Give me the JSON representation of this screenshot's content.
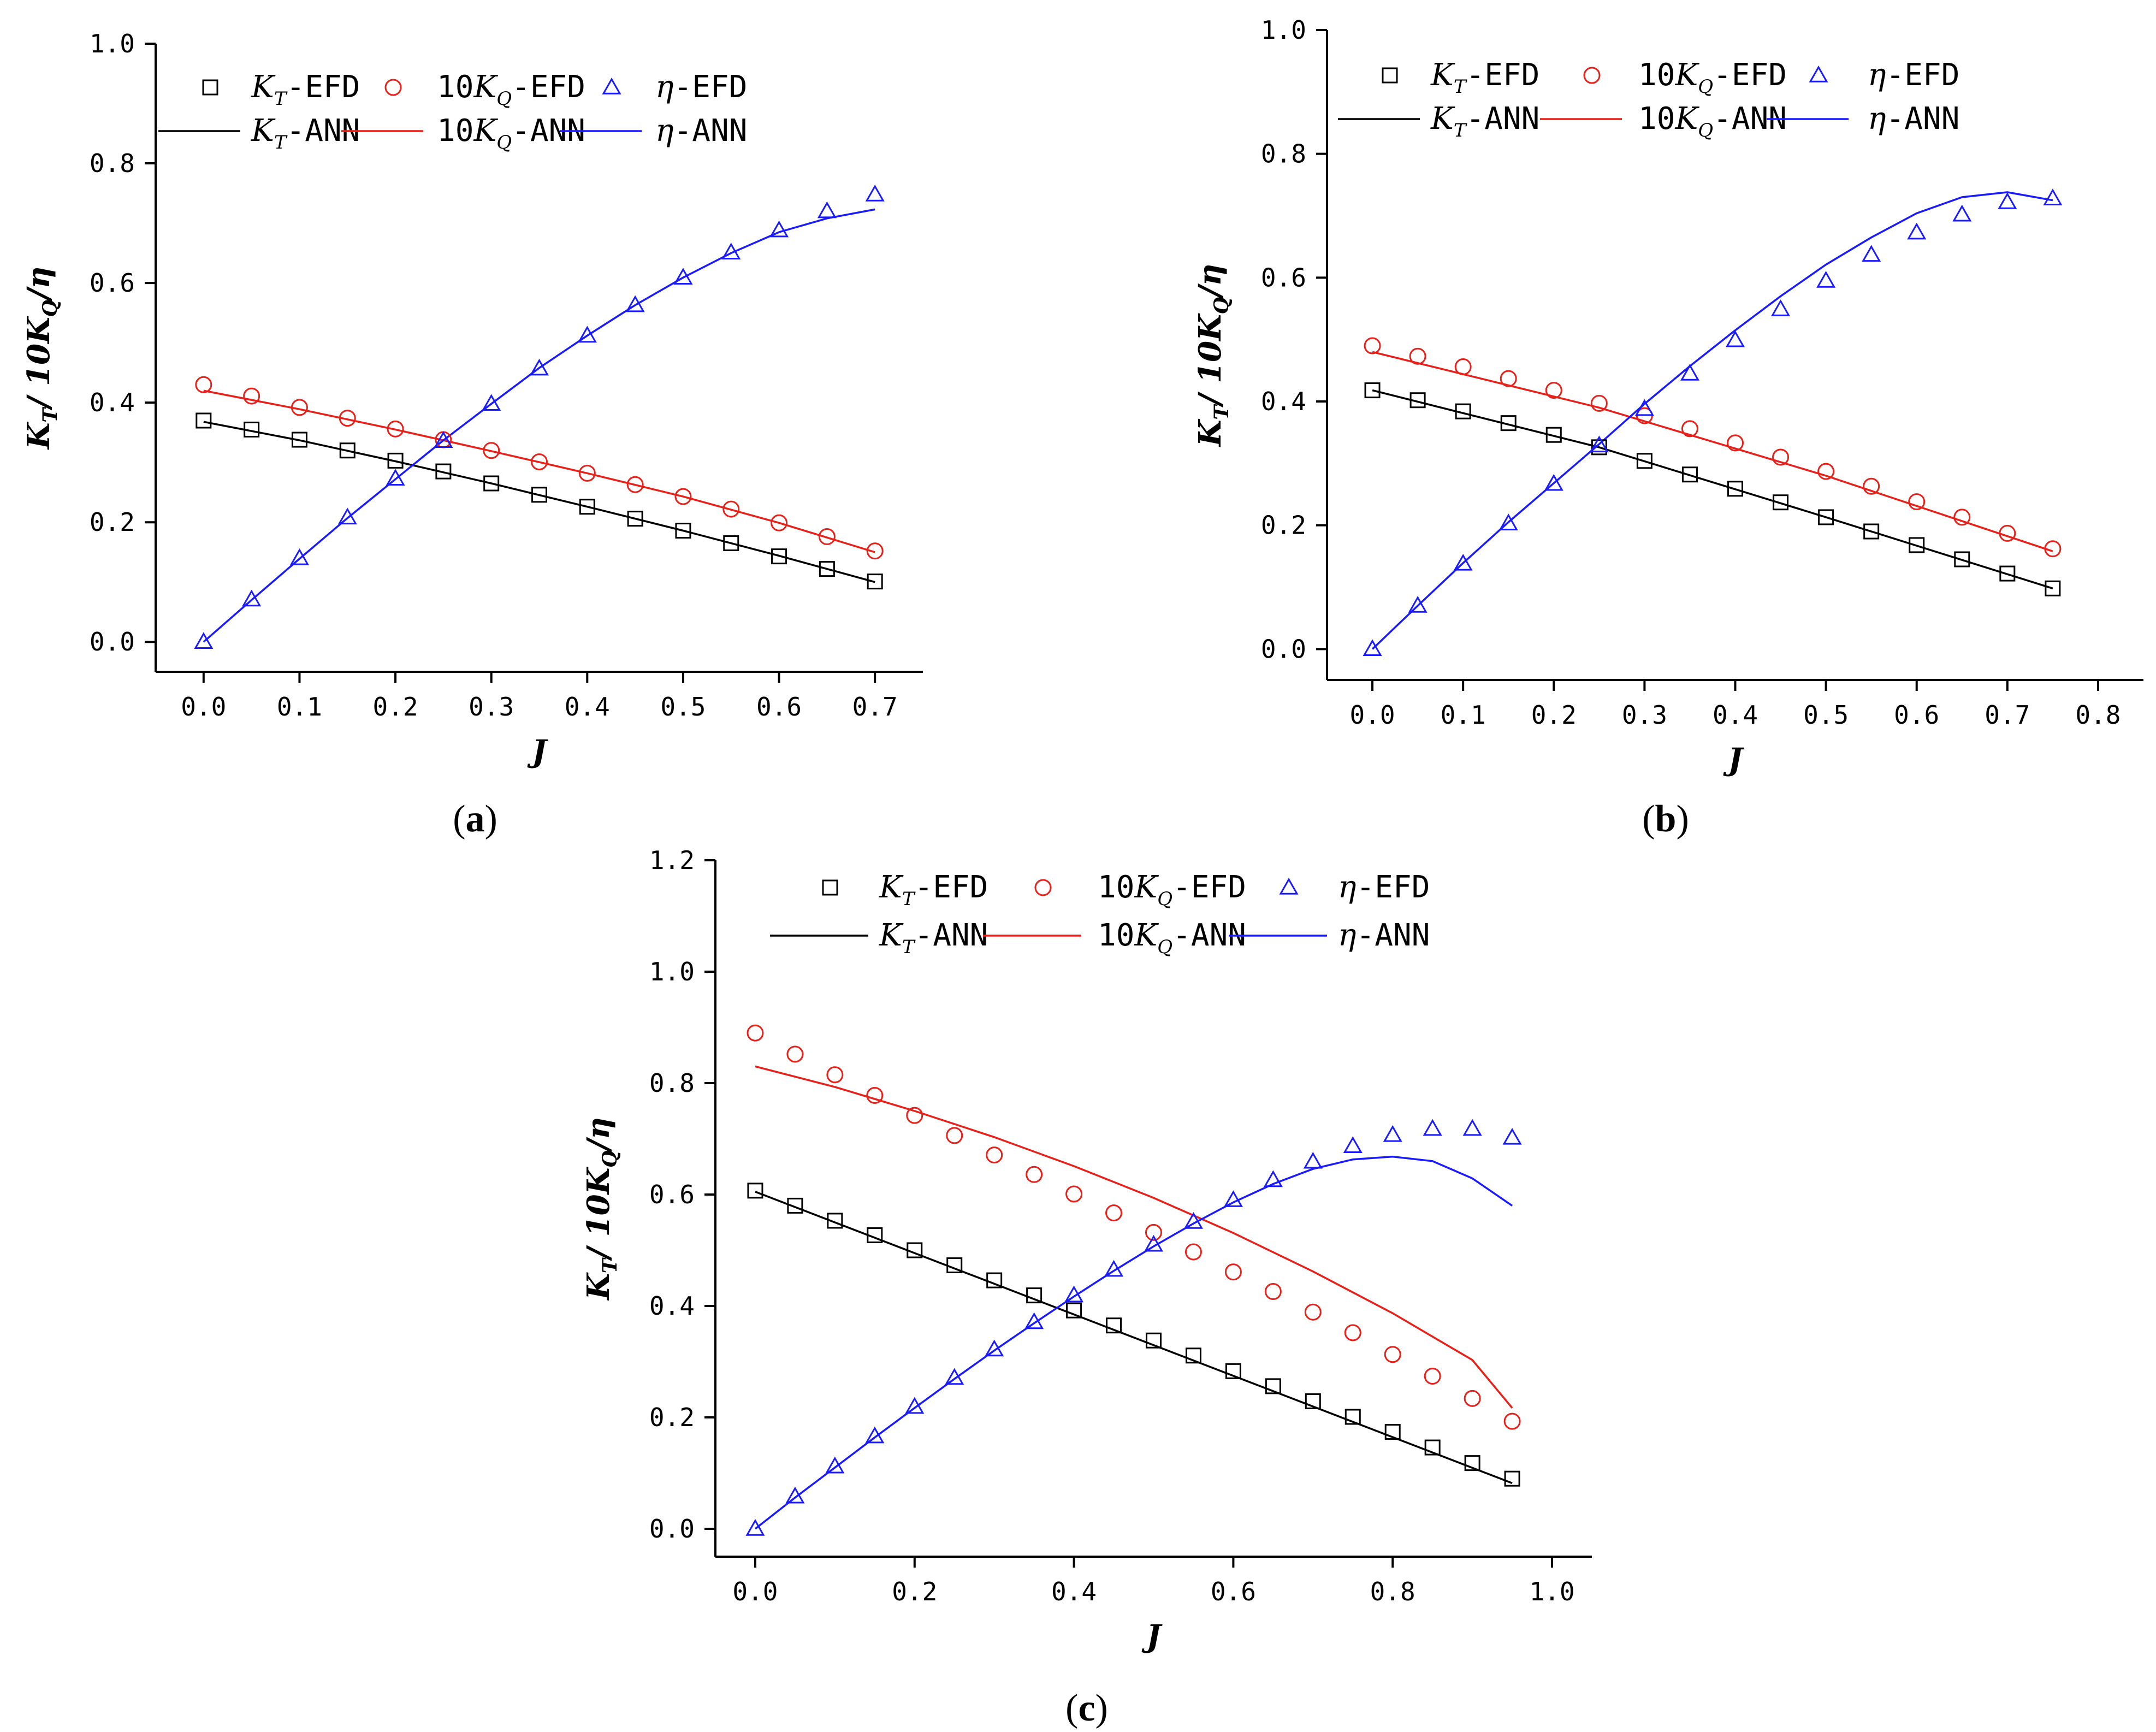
{
  "figure_labels": [
    "(a)",
    "(b)",
    "(c)"
  ],
  "colors": {
    "KT": "#000000",
    "KQ": "#e8201a",
    "eta": "#1a1aff"
  },
  "chart_data": [
    {
      "id": "a",
      "type": "scatter+line",
      "panel_label": "(a)",
      "xlabel": "J",
      "ylabel": "K_T/ 10K_Q/η",
      "xlim": [
        -0.05,
        0.75
      ],
      "ylim": [
        -0.05,
        1.0
      ],
      "xticks": [
        0.0,
        0.1,
        0.2,
        0.3,
        0.4,
        0.5,
        0.6,
        0.7
      ],
      "yticks": [
        0.0,
        0.2,
        0.4,
        0.6,
        0.8,
        1.0
      ],
      "x_tick_decimals": 1,
      "y_tick_decimals": 1,
      "x_tick_labels": [
        "0.0",
        "0.1",
        "0.2",
        "0.3",
        "0.4",
        "0.5",
        "0.6",
        "0.7"
      ],
      "y_tick_labels": [
        "0.0",
        "0.2",
        "0.4",
        "0.6",
        "0.8",
        "1.0"
      ],
      "legend": {
        "placement": "top-left",
        "entries": [
          {
            "series": "KT-EFD",
            "kind": "square",
            "prefix": "",
            "var": "K",
            "sub": "T",
            "suffix": "-EFD"
          },
          {
            "series": "10KQ-EFD",
            "kind": "circle",
            "prefix": "10",
            "var": "K",
            "sub": "Q",
            "suffix": "-EFD"
          },
          {
            "series": "eta-EFD",
            "kind": "triangle",
            "prefix": "",
            "var": "η",
            "sub": "",
            "suffix": "-EFD"
          },
          {
            "series": "KT-ANN",
            "kind": "line",
            "prefix": "",
            "var": "K",
            "sub": "T",
            "suffix": "-ANN"
          },
          {
            "series": "10KQ-ANN",
            "kind": "line",
            "prefix": "10",
            "var": "K",
            "sub": "Q",
            "suffix": "-ANN"
          },
          {
            "series": "eta-ANN",
            "kind": "line",
            "prefix": "",
            "var": "η",
            "sub": "",
            "suffix": "-ANN"
          }
        ]
      },
      "series": [
        {
          "name": "KT-EFD",
          "kind": "square",
          "color": "#000000",
          "x": [
            0.0,
            0.05,
            0.1,
            0.15,
            0.2,
            0.25,
            0.3,
            0.35,
            0.4,
            0.45,
            0.5,
            0.55,
            0.6,
            0.65,
            0.7
          ],
          "y": [
            0.37,
            0.355,
            0.338,
            0.32,
            0.303,
            0.285,
            0.265,
            0.246,
            0.226,
            0.206,
            0.186,
            0.165,
            0.143,
            0.122,
            0.101
          ]
        },
        {
          "name": "10KQ-EFD",
          "kind": "circle",
          "color": "#e8201a",
          "x": [
            0.0,
            0.05,
            0.1,
            0.15,
            0.2,
            0.25,
            0.3,
            0.35,
            0.4,
            0.45,
            0.5,
            0.55,
            0.6,
            0.65,
            0.7
          ],
          "y": [
            0.43,
            0.411,
            0.392,
            0.374,
            0.356,
            0.338,
            0.32,
            0.301,
            0.282,
            0.263,
            0.243,
            0.222,
            0.199,
            0.176,
            0.152
          ]
        },
        {
          "name": "eta-EFD",
          "kind": "triangle",
          "color": "#1a1aff",
          "x": [
            0.0,
            0.05,
            0.1,
            0.15,
            0.2,
            0.25,
            0.3,
            0.35,
            0.4,
            0.45,
            0.5,
            0.55,
            0.6,
            0.65,
            0.7
          ],
          "y": [
            0.0,
            0.071,
            0.14,
            0.208,
            0.273,
            0.336,
            0.398,
            0.457,
            0.512,
            0.563,
            0.609,
            0.651,
            0.688,
            0.72,
            0.748
          ]
        },
        {
          "name": "KT-ANN",
          "kind": "line",
          "color": "#000000",
          "x": [
            0.0,
            0.1,
            0.2,
            0.3,
            0.4,
            0.5,
            0.6,
            0.7
          ],
          "y": [
            0.368,
            0.337,
            0.302,
            0.265,
            0.226,
            0.186,
            0.144,
            0.1
          ]
        },
        {
          "name": "10KQ-ANN",
          "kind": "line",
          "color": "#e8201a",
          "x": [
            0.0,
            0.1,
            0.2,
            0.3,
            0.4,
            0.5,
            0.6,
            0.7
          ],
          "y": [
            0.42,
            0.389,
            0.355,
            0.319,
            0.282,
            0.243,
            0.199,
            0.15
          ]
        },
        {
          "name": "eta-ANN",
          "kind": "line",
          "color": "#1a1aff",
          "x": [
            0.0,
            0.05,
            0.1,
            0.15,
            0.2,
            0.25,
            0.3,
            0.35,
            0.4,
            0.45,
            0.5,
            0.55,
            0.6,
            0.65,
            0.7
          ],
          "y": [
            0.0,
            0.07,
            0.139,
            0.207,
            0.272,
            0.337,
            0.398,
            0.458,
            0.512,
            0.563,
            0.609,
            0.65,
            0.685,
            0.708,
            0.723
          ]
        }
      ]
    },
    {
      "id": "b",
      "type": "scatter+line",
      "panel_label": "(b)",
      "xlabel": "J",
      "ylabel": "K_T/ 10K_Q/η",
      "xlim": [
        -0.05,
        0.85
      ],
      "ylim": [
        -0.05,
        1.0
      ],
      "xticks": [
        0.0,
        0.1,
        0.2,
        0.3,
        0.4,
        0.5,
        0.6,
        0.7,
        0.8
      ],
      "yticks": [
        0.0,
        0.2,
        0.4,
        0.6,
        0.8,
        1.0
      ],
      "x_tick_decimals": 1,
      "y_tick_decimals": 1,
      "x_tick_labels": [
        "0.0",
        "0.1",
        "0.2",
        "0.3",
        "0.4",
        "0.5",
        "0.6",
        "0.7",
        "0.8"
      ],
      "y_tick_labels": [
        "0.0",
        "0.2",
        "0.4",
        "0.6",
        "0.8",
        "1.0"
      ],
      "legend": {
        "placement": "top-left",
        "entries": [
          {
            "series": "KT-EFD",
            "kind": "square",
            "prefix": "",
            "var": "K",
            "sub": "T",
            "suffix": "-EFD"
          },
          {
            "series": "10KQ-EFD",
            "kind": "circle",
            "prefix": "10",
            "var": "K",
            "sub": "Q",
            "suffix": "-EFD"
          },
          {
            "series": "eta-EFD",
            "kind": "triangle",
            "prefix": "",
            "var": "η",
            "sub": "",
            "suffix": "-EFD"
          },
          {
            "series": "KT-ANN",
            "kind": "line",
            "prefix": "",
            "var": "K",
            "sub": "T",
            "suffix": "-ANN"
          },
          {
            "series": "10KQ-ANN",
            "kind": "line",
            "prefix": "10",
            "var": "K",
            "sub": "Q",
            "suffix": "-ANN"
          },
          {
            "series": "eta-ANN",
            "kind": "line",
            "prefix": "",
            "var": "η",
            "sub": "",
            "suffix": "-ANN"
          }
        ]
      },
      "series": [
        {
          "name": "KT-EFD",
          "kind": "square",
          "color": "#000000",
          "x": [
            0.0,
            0.05,
            0.1,
            0.15,
            0.2,
            0.25,
            0.3,
            0.35,
            0.4,
            0.45,
            0.5,
            0.55,
            0.6,
            0.65,
            0.7,
            0.75
          ],
          "y": [
            0.418,
            0.402,
            0.384,
            0.365,
            0.346,
            0.326,
            0.304,
            0.282,
            0.259,
            0.237,
            0.213,
            0.19,
            0.168,
            0.145,
            0.122,
            0.098
          ]
        },
        {
          "name": "10KQ-EFD",
          "kind": "circle",
          "color": "#e8201a",
          "x": [
            0.0,
            0.05,
            0.1,
            0.15,
            0.2,
            0.25,
            0.3,
            0.35,
            0.4,
            0.45,
            0.5,
            0.55,
            0.6,
            0.65,
            0.7,
            0.75
          ],
          "y": [
            0.49,
            0.473,
            0.456,
            0.437,
            0.418,
            0.397,
            0.377,
            0.356,
            0.333,
            0.31,
            0.287,
            0.263,
            0.238,
            0.213,
            0.187,
            0.162
          ]
        },
        {
          "name": "eta-EFD",
          "kind": "triangle",
          "color": "#1a1aff",
          "x": [
            0.0,
            0.05,
            0.1,
            0.15,
            0.2,
            0.25,
            0.3,
            0.35,
            0.4,
            0.45,
            0.5,
            0.55,
            0.6,
            0.65,
            0.7,
            0.75
          ],
          "y": [
            0.0,
            0.07,
            0.138,
            0.203,
            0.267,
            0.329,
            0.388,
            0.445,
            0.499,
            0.549,
            0.595,
            0.637,
            0.673,
            0.702,
            0.722,
            0.728
          ]
        },
        {
          "name": "KT-ANN",
          "kind": "line",
          "color": "#000000",
          "x": [
            0.0,
            0.25,
            0.5,
            0.75
          ],
          "y": [
            0.418,
            0.326,
            0.213,
            0.098
          ]
        },
        {
          "name": "10KQ-ANN",
          "kind": "line",
          "color": "#e8201a",
          "x": [
            0.0,
            0.25,
            0.5,
            0.75
          ],
          "y": [
            0.48,
            0.39,
            0.28,
            0.158
          ]
        },
        {
          "name": "eta-ANN",
          "kind": "line",
          "color": "#1a1aff",
          "x": [
            0.0,
            0.05,
            0.1,
            0.15,
            0.2,
            0.25,
            0.3,
            0.35,
            0.4,
            0.45,
            0.5,
            0.55,
            0.6,
            0.65,
            0.7,
            0.75
          ],
          "y": [
            0.0,
            0.07,
            0.139,
            0.205,
            0.268,
            0.331,
            0.396,
            0.457,
            0.515,
            0.57,
            0.621,
            0.665,
            0.704,
            0.73,
            0.738,
            0.725
          ]
        }
      ]
    },
    {
      "id": "c",
      "type": "scatter+line",
      "panel_label": "(c)",
      "xlabel": "J",
      "ylabel": "K_T/ 10K_Q/η",
      "xlim": [
        -0.05,
        1.05
      ],
      "ylim": [
        -0.05,
        1.2
      ],
      "xticks": [
        0.0,
        0.2,
        0.4,
        0.6,
        0.8,
        1.0
      ],
      "yticks": [
        0.0,
        0.2,
        0.4,
        0.6,
        0.8,
        1.0,
        1.2
      ],
      "x_tick_decimals": 1,
      "y_tick_decimals": 1,
      "x_tick_labels": [
        "0.0",
        "0.2",
        "0.4",
        "0.6",
        "0.8",
        "1.0"
      ],
      "y_tick_labels": [
        "0.0",
        "0.2",
        "0.4",
        "0.6",
        "0.8",
        "1.0",
        "1.2"
      ],
      "legend": {
        "placement": "top",
        "entries": [
          {
            "series": "KT-EFD",
            "kind": "square",
            "prefix": "",
            "var": "K",
            "sub": "T",
            "suffix": "-EFD"
          },
          {
            "series": "10KQ-EFD",
            "kind": "circle",
            "prefix": "10",
            "var": "K",
            "sub": "Q",
            "suffix": "-EFD"
          },
          {
            "series": "eta-EFD",
            "kind": "triangle",
            "prefix": "",
            "var": "η",
            "sub": "",
            "suffix": "-EFD"
          },
          {
            "series": "KT-ANN",
            "kind": "line",
            "prefix": "",
            "var": "K",
            "sub": "T",
            "suffix": "-ANN"
          },
          {
            "series": "10KQ-ANN",
            "kind": "line",
            "prefix": "10",
            "var": "K",
            "sub": "Q",
            "suffix": "-ANN"
          },
          {
            "series": "eta-ANN",
            "kind": "line",
            "prefix": "",
            "var": "η",
            "sub": "",
            "suffix": "-ANN"
          }
        ]
      },
      "series": [
        {
          "name": "KT-EFD",
          "kind": "square",
          "color": "#000000",
          "x": [
            0.0,
            0.05,
            0.1,
            0.15,
            0.2,
            0.25,
            0.3,
            0.35,
            0.4,
            0.45,
            0.5,
            0.55,
            0.6,
            0.65,
            0.7,
            0.75,
            0.8,
            0.85,
            0.9,
            0.95
          ],
          "y": [
            0.607,
            0.58,
            0.553,
            0.527,
            0.5,
            0.473,
            0.446,
            0.419,
            0.392,
            0.365,
            0.338,
            0.311,
            0.283,
            0.256,
            0.229,
            0.201,
            0.174,
            0.146,
            0.118,
            0.09
          ]
        },
        {
          "name": "10KQ-EFD",
          "kind": "circle",
          "color": "#e8201a",
          "x": [
            0.0,
            0.05,
            0.1,
            0.15,
            0.2,
            0.25,
            0.3,
            0.35,
            0.4,
            0.45,
            0.5,
            0.55,
            0.6,
            0.65,
            0.7,
            0.75,
            0.8,
            0.85,
            0.9,
            0.95
          ],
          "y": [
            0.89,
            0.852,
            0.815,
            0.778,
            0.742,
            0.706,
            0.671,
            0.636,
            0.601,
            0.567,
            0.532,
            0.497,
            0.461,
            0.426,
            0.389,
            0.352,
            0.313,
            0.274,
            0.234,
            0.193
          ]
        },
        {
          "name": "eta-EFD",
          "kind": "triangle",
          "color": "#1a1aff",
          "x": [
            0.0,
            0.05,
            0.1,
            0.15,
            0.2,
            0.25,
            0.3,
            0.35,
            0.4,
            0.45,
            0.5,
            0.55,
            0.6,
            0.65,
            0.7,
            0.75,
            0.8,
            0.85,
            0.9,
            0.95
          ],
          "y": [
            0.0,
            0.058,
            0.112,
            0.166,
            0.219,
            0.271,
            0.322,
            0.371,
            0.419,
            0.465,
            0.51,
            0.551,
            0.59,
            0.626,
            0.659,
            0.687,
            0.707,
            0.718,
            0.718,
            0.702
          ]
        },
        {
          "name": "KT-ANN",
          "kind": "line",
          "color": "#000000",
          "x": [
            0.0,
            0.95
          ],
          "y": [
            0.605,
            0.082
          ]
        },
        {
          "name": "10KQ-ANN",
          "kind": "line",
          "color": "#e8201a",
          "x": [
            0.0,
            0.1,
            0.2,
            0.3,
            0.4,
            0.5,
            0.6,
            0.7,
            0.8,
            0.9,
            0.95
          ],
          "y": [
            0.83,
            0.793,
            0.75,
            0.703,
            0.651,
            0.594,
            0.531,
            0.462,
            0.387,
            0.303,
            0.217
          ]
        },
        {
          "name": "eta-ANN",
          "kind": "line",
          "color": "#1a1aff",
          "x": [
            0.0,
            0.05,
            0.1,
            0.15,
            0.2,
            0.25,
            0.3,
            0.35,
            0.4,
            0.45,
            0.5,
            0.55,
            0.6,
            0.65,
            0.7,
            0.75,
            0.8,
            0.85,
            0.9,
            0.95
          ],
          "y": [
            0.0,
            0.056,
            0.11,
            0.164,
            0.217,
            0.269,
            0.32,
            0.369,
            0.417,
            0.463,
            0.507,
            0.548,
            0.586,
            0.619,
            0.646,
            0.663,
            0.668,
            0.66,
            0.629,
            0.58
          ]
        }
      ]
    }
  ]
}
